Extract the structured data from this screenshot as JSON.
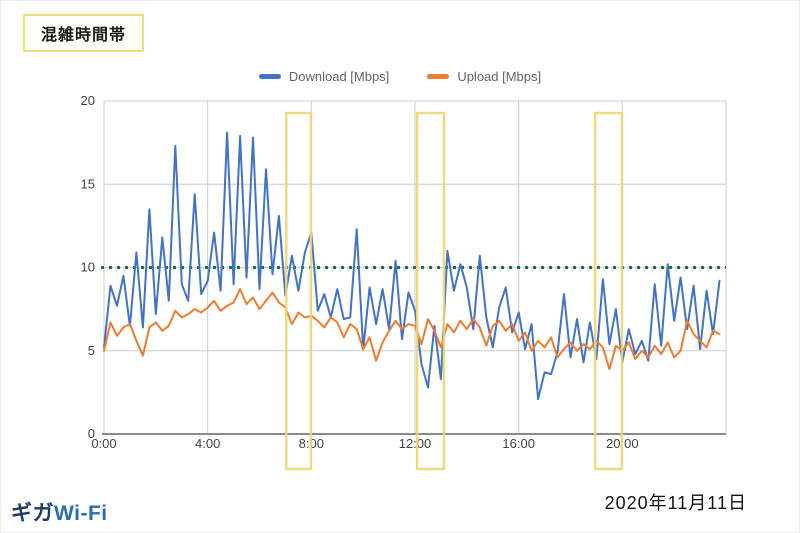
{
  "title_box": {
    "label": "混雑時間帯"
  },
  "legend": [
    {
      "label": "Download [Mbps]",
      "color": "#4472c4"
    },
    {
      "label": "Upload [Mbps]",
      "color": "#ed7d31"
    }
  ],
  "footer": {
    "logo_giga": "ギガ",
    "logo_wifi": "Wi-Fi",
    "date": "2020年11月11日"
  },
  "chart_data": {
    "type": "line",
    "title": "",
    "xlabel": "",
    "ylabel": "",
    "ylim": [
      0,
      20
    ],
    "y_ticks": [
      0,
      5,
      10,
      15,
      20
    ],
    "x_range_minutes": [
      0,
      1440
    ],
    "x_ticks": [
      {
        "min": 0,
        "label": "0:00"
      },
      {
        "min": 240,
        "label": "4:00"
      },
      {
        "min": 480,
        "label": "8:00"
      },
      {
        "min": 720,
        "label": "12:00"
      },
      {
        "min": 960,
        "label": "16:00"
      },
      {
        "min": 1200,
        "label": "20:00"
      }
    ],
    "interval_minutes": 15,
    "grid": true,
    "legend_position": "top",
    "grid_color": "#cccccc",
    "axis_color": "#8a8a8a",
    "tick_label_color": "#424242",
    "reference_line": {
      "value": 10,
      "color": "#17753e",
      "style": "dotted"
    },
    "highlight_color": "#f0d570",
    "highlight_boxes_minutes": [
      {
        "start": 422,
        "end": 479
      },
      {
        "start": 725,
        "end": 787
      },
      {
        "start": 1137,
        "end": 1199
      }
    ],
    "series": [
      {
        "name": "Download [Mbps]",
        "color": "#4472c4",
        "values": [
          5.2,
          8.9,
          7.7,
          9.5,
          6.5,
          10.9,
          6.4,
          13.5,
          7.2,
          11.8,
          8.0,
          17.3,
          9.0,
          8.0,
          14.4,
          8.4,
          9.2,
          12.1,
          8.6,
          18.1,
          9.0,
          17.9,
          9.4,
          17.8,
          8.7,
          15.9,
          9.6,
          13.1,
          8.3,
          10.7,
          8.6,
          10.9,
          12.1,
          7.4,
          8.4,
          7.0,
          8.7,
          6.9,
          7.0,
          12.3,
          5.1,
          8.8,
          6.6,
          8.7,
          6.3,
          10.4,
          5.7,
          8.5,
          7.4,
          4.2,
          2.8,
          6.5,
          3.3,
          11.0,
          8.6,
          10.2,
          8.8,
          6.3,
          10.7,
          7.0,
          5.2,
          7.6,
          8.8,
          6.1,
          7.3,
          5.1,
          6.6,
          2.1,
          3.7,
          3.6,
          4.9,
          8.4,
          4.6,
          6.9,
          4.3,
          6.7,
          4.5,
          9.3,
          5.4,
          7.5,
          4.3,
          6.3,
          4.8,
          5.6,
          4.4,
          9.0,
          5.3,
          10.2,
          6.8,
          9.4,
          6.3,
          8.9,
          5.1,
          8.6,
          6.0,
          9.2
        ]
      },
      {
        "name": "Upload [Mbps]",
        "color": "#ed7d31",
        "values": [
          5.0,
          6.7,
          5.9,
          6.4,
          6.6,
          5.6,
          4.7,
          6.4,
          6.7,
          6.2,
          6.5,
          7.4,
          7.0,
          7.2,
          7.5,
          7.3,
          7.6,
          8.0,
          7.4,
          7.7,
          7.9,
          8.7,
          7.8,
          8.2,
          7.5,
          8.0,
          8.5,
          7.9,
          7.6,
          6.6,
          7.3,
          7.0,
          7.1,
          6.8,
          6.4,
          7.0,
          6.7,
          5.8,
          6.6,
          6.3,
          5.1,
          5.8,
          4.4,
          5.5,
          6.2,
          6.8,
          6.3,
          6.6,
          6.5,
          5.4,
          6.9,
          6.2,
          5.2,
          6.6,
          6.1,
          6.8,
          6.3,
          6.9,
          6.4,
          5.3,
          6.5,
          6.8,
          6.2,
          6.6,
          5.6,
          6.1,
          5.0,
          5.6,
          5.2,
          5.8,
          4.6,
          5.1,
          5.5,
          5.0,
          5.4,
          5.1,
          5.6,
          5.2,
          3.9,
          5.3,
          5.0,
          5.5,
          4.5,
          5.0,
          4.6,
          5.3,
          4.8,
          5.5,
          4.6,
          5.0,
          6.8,
          6.0,
          5.6,
          5.2,
          6.2,
          6.0
        ]
      }
    ]
  }
}
